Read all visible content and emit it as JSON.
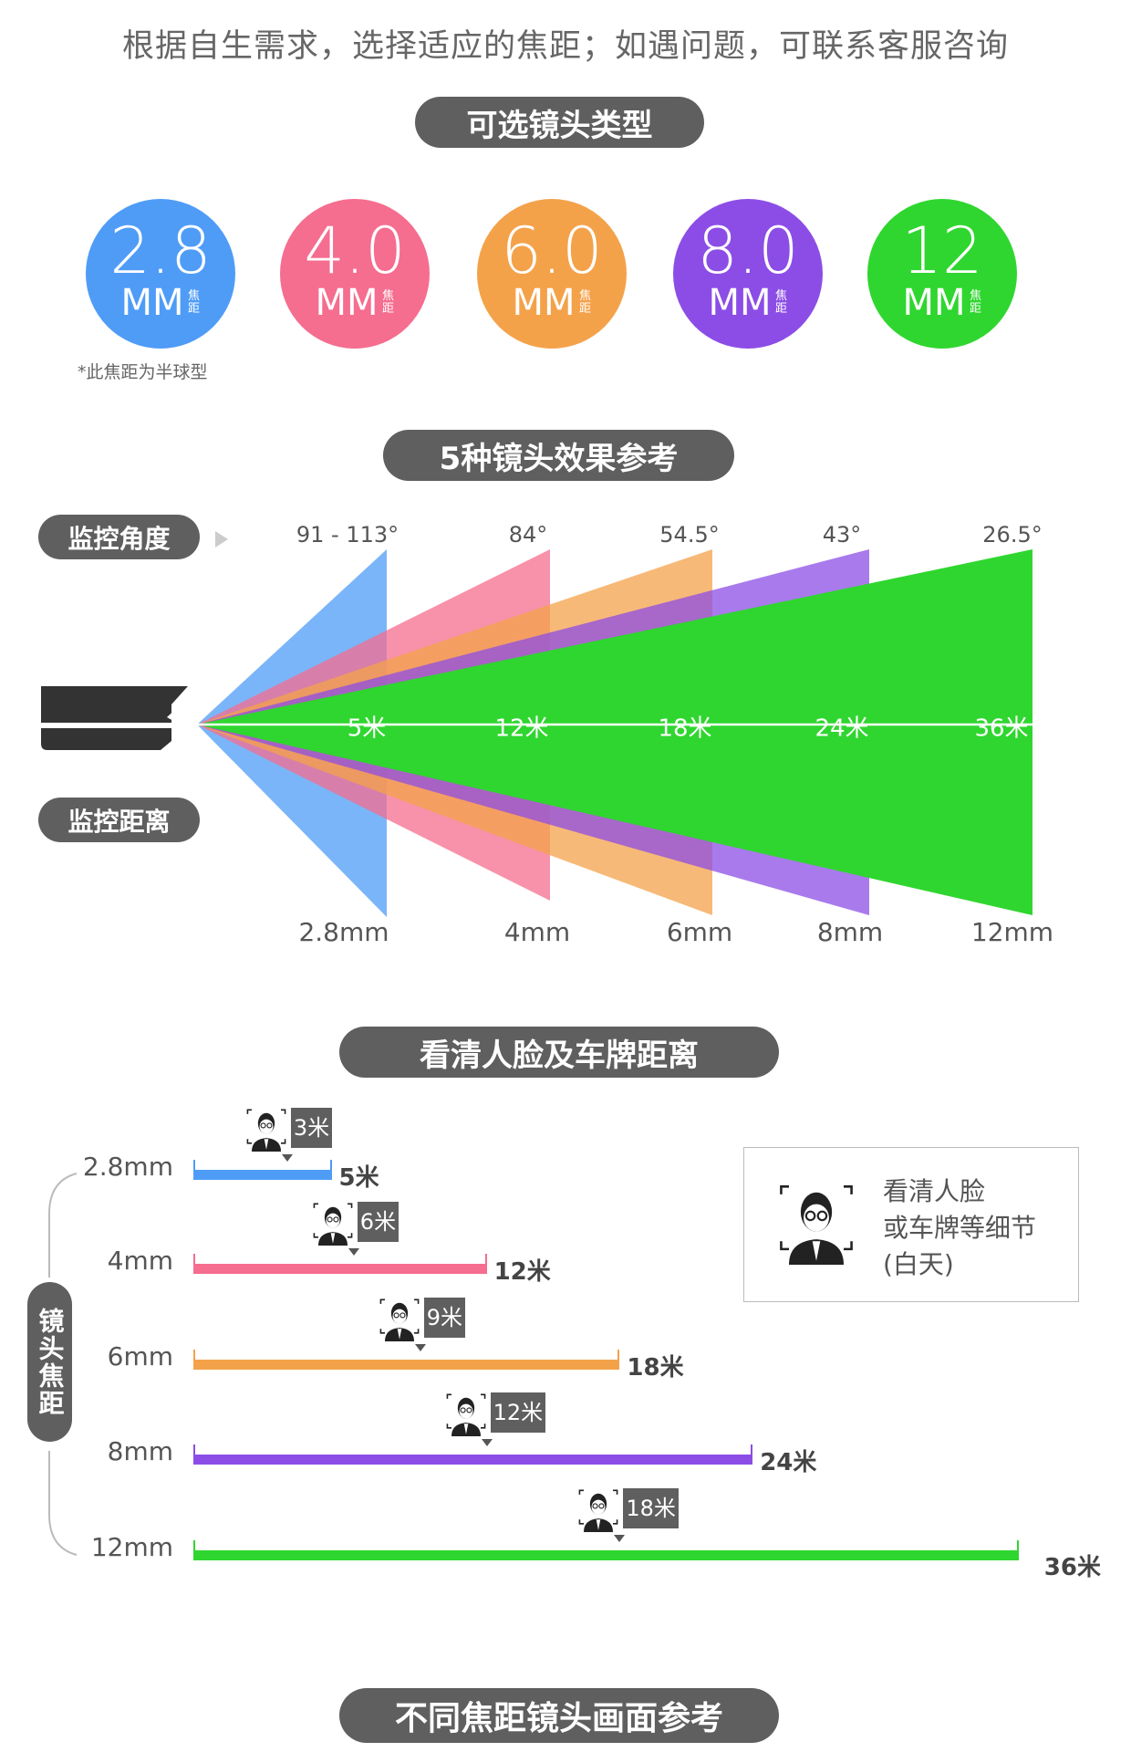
{
  "intro": "根据自生需求，选择适应的焦距；如遇问题，可联系客服咨询",
  "section1": {
    "title": "可选镜头类型"
  },
  "lenses": [
    {
      "value": "2.8",
      "unit": "MM",
      "sub": "焦距",
      "color": "#4f9cf7"
    },
    {
      "value": "4.0",
      "unit": "MM",
      "sub": "焦距",
      "color": "#f56d8f"
    },
    {
      "value": "6.0",
      "unit": "MM",
      "sub": "焦距",
      "color": "#f4a24a"
    },
    {
      "value": "8.0",
      "unit": "MM",
      "sub": "焦距",
      "color": "#8c4de6"
    },
    {
      "value": "12",
      "unit": "MM",
      "sub": "焦距",
      "color": "#2fd62f"
    }
  ],
  "dome_note": "*此焦距为半球型",
  "section2": {
    "title": "5种镜头效果参考",
    "angle_label": "监控角度",
    "distance_label": "监控距离"
  },
  "fan": [
    {
      "focal": "2.8mm",
      "angle": "91 - 113°",
      "distance": "5米",
      "color": "#4f9cf7"
    },
    {
      "focal": "4mm",
      "angle": "84°",
      "distance": "12米",
      "color": "#f56d8f"
    },
    {
      "focal": "6mm",
      "angle": "54.5°",
      "distance": "18米",
      "color": "#f4a24a"
    },
    {
      "focal": "8mm",
      "angle": "43°",
      "distance": "24米",
      "color": "#8c4de6"
    },
    {
      "focal": "12mm",
      "angle": "26.5°",
      "distance": "36米",
      "color": "#2fd62f"
    }
  ],
  "section3": {
    "title": "看清人脸及车牌距离",
    "axis_label": "镜头焦距"
  },
  "ranges": [
    {
      "focal": "2.8mm",
      "face": 3,
      "face_label": "3米",
      "max": 5,
      "max_label": "5米",
      "color": "#4f9cf7"
    },
    {
      "focal": "4mm",
      "face": 6,
      "face_label": "6米",
      "max": 12,
      "max_label": "12米",
      "color": "#f56d8f"
    },
    {
      "focal": "6mm",
      "face": 9,
      "face_label": "9米",
      "max": 18,
      "max_label": "18米",
      "color": "#f4a24a"
    },
    {
      "focal": "8mm",
      "face": 12,
      "face_label": "12米",
      "max": 24,
      "max_label": "24米",
      "color": "#8c4de6"
    },
    {
      "focal": "12mm",
      "face": 18,
      "face_label": "18米",
      "max": 36,
      "max_label": "36米",
      "color": "#2fd62f"
    }
  ],
  "legend": {
    "line1": "看清人脸",
    "line2": "或车牌等细节",
    "line3": "(白天)"
  },
  "section4": {
    "title": "不同焦距镜头画面参考"
  }
}
